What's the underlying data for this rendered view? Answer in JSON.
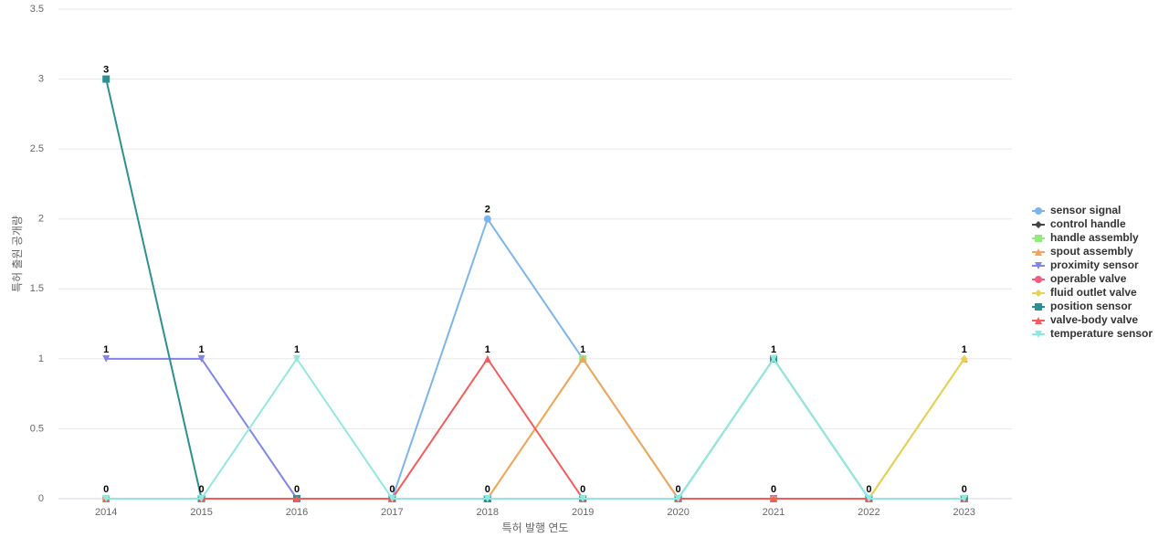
{
  "chart_data": {
    "type": "line",
    "x_label": "특허 발행 연도",
    "y_label": "특허 출원 공개량",
    "categories": [
      "2014",
      "2015",
      "2016",
      "2017",
      "2018",
      "2019",
      "2020",
      "2021",
      "2022",
      "2023"
    ],
    "series": [
      {
        "name": "sensor signal",
        "color": "#7cb5ec",
        "values": [
          0,
          0,
          0,
          0,
          2,
          1,
          0,
          0,
          0,
          0
        ]
      },
      {
        "name": "control handle",
        "color": "#434348",
        "values": [
          0,
          0,
          0,
          0,
          0,
          0,
          0,
          0,
          0,
          0
        ]
      },
      {
        "name": "handle assembly",
        "color": "#90ed7d",
        "values": [
          0,
          0,
          0,
          0,
          0,
          1,
          0,
          0,
          0,
          0
        ]
      },
      {
        "name": "spout assembly",
        "color": "#f7a35c",
        "values": [
          0,
          0,
          0,
          0,
          0,
          1,
          0,
          0,
          0,
          1
        ]
      },
      {
        "name": "proximity sensor",
        "color": "#8085e9",
        "values": [
          1,
          1,
          0,
          0,
          0,
          0,
          0,
          0,
          0,
          0
        ]
      },
      {
        "name": "operable valve",
        "color": "#f15c80",
        "values": [
          0,
          0,
          0,
          0,
          0,
          0,
          0,
          0,
          0,
          0
        ]
      },
      {
        "name": "fluid outlet valve",
        "color": "#e4d354",
        "values": [
          0,
          0,
          0,
          0,
          0,
          0,
          0,
          0,
          0,
          1
        ]
      },
      {
        "name": "position sensor",
        "color": "#2b908f",
        "values": [
          3,
          0,
          0,
          0,
          0,
          0,
          0,
          1,
          0,
          0
        ]
      },
      {
        "name": "valve-body valve",
        "color": "#f45b5b",
        "values": [
          0,
          0,
          0,
          0,
          1,
          0,
          0,
          0,
          0,
          0
        ]
      },
      {
        "name": "temperature sensor",
        "color": "#91e8e1",
        "values": [
          0,
          0,
          1,
          0,
          0,
          0,
          0,
          1,
          0,
          0
        ]
      }
    ],
    "ylim": [
      0,
      3.5
    ],
    "yticks": [
      0,
      0.5,
      1,
      1.5,
      2,
      2.5,
      3,
      3.5
    ],
    "grid": true,
    "legend": "right",
    "data_labels": true
  }
}
